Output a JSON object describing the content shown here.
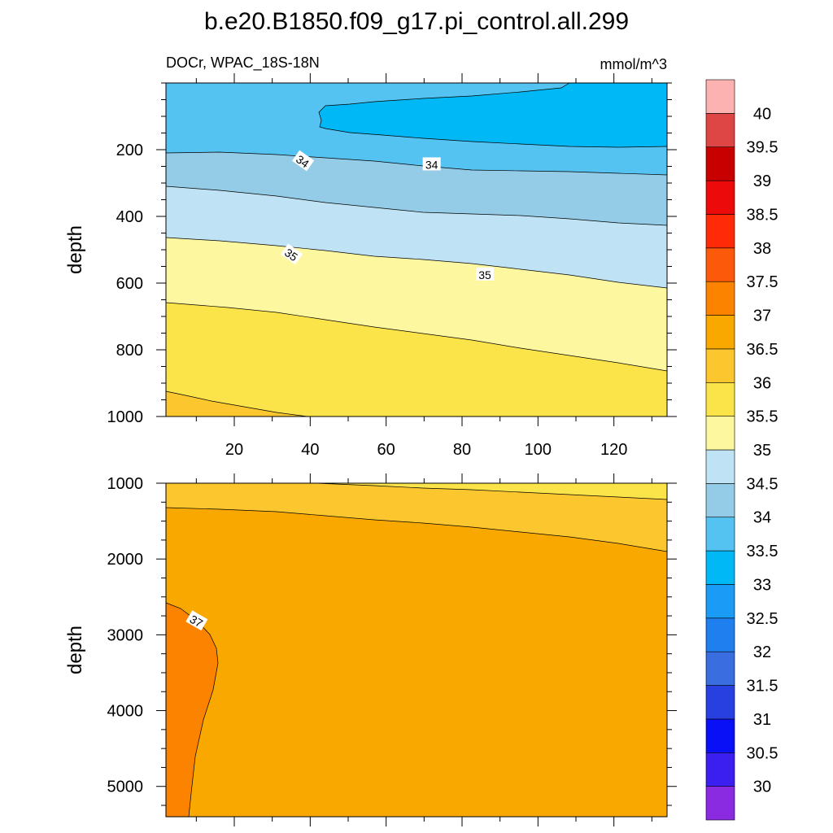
{
  "title": "b.e20.B1850.f09_g17.pi_control.all.299",
  "subtitle_left": "DOCr, WPAC_18S-18N",
  "subtitle_right": "mmol/m^3",
  "chart_data": {
    "type": "contour",
    "variable": "DOCr",
    "region": "WPAC_18S-18N",
    "units": "mmol/m^3",
    "x_axis": {
      "ticks": [
        20,
        40,
        60,
        80,
        100,
        120
      ],
      "tick_labels": [
        "20",
        "40",
        "60",
        "80",
        "100",
        "120"
      ],
      "range": [
        2,
        134
      ]
    },
    "panels": [
      {
        "name": "upper",
        "ylabel": "depth",
        "ylim": [
          0,
          1000
        ],
        "y_ticks": [
          200,
          400,
          600,
          800,
          1000
        ],
        "y_tick_labels": [
          "200",
          "400",
          "600",
          "800",
          "1000"
        ],
        "contour_labels": [
          {
            "text": "34",
            "x": 38,
            "depth": 235
          },
          {
            "text": "34",
            "x": 72,
            "depth": 245
          },
          {
            "text": "35",
            "x": 35,
            "depth": 515
          },
          {
            "text": "35",
            "x": 86,
            "depth": 575
          }
        ],
        "contours": [
          {
            "level": 33.5,
            "points": [
              [
                2,
                45
              ],
              [
                134,
                45
              ]
            ],
            "comment_region": "blob"
          },
          {
            "level": 34,
            "points": [
              [
                2,
                210
              ],
              [
                134,
                190
              ]
            ]
          },
          {
            "level": 34.5,
            "points": [
              [
                2,
                310
              ],
              [
                134,
                285
              ]
            ]
          },
          {
            "level": 35,
            "points": [
              [
                2,
                465
              ],
              [
                134,
                435
              ]
            ]
          },
          {
            "level": 35.5,
            "points": [
              [
                2,
                660
              ],
              [
                134,
                620
              ]
            ]
          },
          {
            "level": 36,
            "points": [
              [
                2,
                925
              ],
              [
                134,
                865
              ]
            ]
          }
        ]
      },
      {
        "name": "lower",
        "ylabel": "depth",
        "ylim": [
          1000,
          5400
        ],
        "y_ticks": [
          1000,
          2000,
          3000,
          4000,
          5000
        ],
        "y_tick_labels": [
          "1000",
          "2000",
          "3000",
          "4000",
          "5000"
        ],
        "contour_labels": [
          {
            "text": "37",
            "x": 10,
            "depth": 2820
          }
        ],
        "contours": [
          {
            "level": 36,
            "points": [
              [
                2,
                1000
              ],
              [
                134,
                1000
              ]
            ]
          },
          {
            "level": 36.5,
            "points": [
              [
                2,
                1330
              ],
              [
                134,
                1890
              ]
            ]
          },
          {
            "level": 37,
            "points": [
              [
                2,
                2600
              ],
              [
                2,
                5400
              ]
            ]
          }
        ]
      }
    ],
    "colorbar": {
      "levels": [
        "30",
        "30.5",
        "31",
        "31.5",
        "32",
        "32.5",
        "33",
        "33.5",
        "34",
        "34.5",
        "35",
        "35.5",
        "36",
        "36.5",
        "37",
        "37.5",
        "38",
        "38.5",
        "39",
        "39.5",
        "40"
      ],
      "colors": [
        "#8a2be2",
        "#3b1ff0",
        "#0a10f5",
        "#2840e0",
        "#3a6de0",
        "#1f7fef",
        "#1a9bf5",
        "#00b8f5",
        "#55c3f2",
        "#94cce8",
        "#bfe3f5",
        "#fdf7a0",
        "#fbe44a",
        "#fbc62e",
        "#f9a800",
        "#fb8300",
        "#fc5a0a",
        "#fe2a08",
        "#ec0a0a",
        "#c80000",
        "#de4545",
        "#fdb2b2"
      ]
    }
  }
}
